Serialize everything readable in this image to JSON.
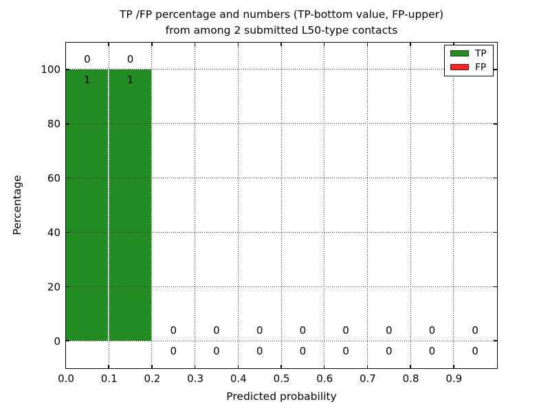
{
  "chart_data": {
    "type": "bar",
    "title": "TP /FP percentage and numbers (TP-bottom value, FP-upper) from among 2 submitted L50-type contacts",
    "title_line1": "TP /FP percentage and numbers (TP-bottom value, FP-upper)",
    "title_line2": "from among 2 submitted L50-type contacts",
    "xlabel": "Predicted probability",
    "ylabel": "Percentage",
    "xlim": [
      0.0,
      1.0
    ],
    "ylim": [
      -10,
      110
    ],
    "xticks": [
      "0.0",
      "0.1",
      "0.2",
      "0.3",
      "0.4",
      "0.5",
      "0.6",
      "0.7",
      "0.8",
      "0.9"
    ],
    "yticks": [
      "0",
      "20",
      "40",
      "60",
      "80",
      "100"
    ],
    "grid": {
      "visible": true,
      "linestyle": "dotted",
      "color": "#333333",
      "axisbelow": false
    },
    "colors": {
      "tp": "#228b22",
      "fp": "#f52525",
      "background": "#ffffff",
      "text": "#000000"
    },
    "legend": {
      "position": "upper right",
      "items": [
        {
          "label": "TP",
          "color": "#228b22"
        },
        {
          "label": "FP",
          "color": "#f52525"
        }
      ]
    },
    "bin_width": 0.1,
    "bins": [
      {
        "range": [
          0.0,
          0.1
        ],
        "tp_percent": 100,
        "fp_percent": 0,
        "tp_count": 1,
        "fp_count": 0
      },
      {
        "range": [
          0.1,
          0.2
        ],
        "tp_percent": 100,
        "fp_percent": 0,
        "tp_count": 1,
        "fp_count": 0
      },
      {
        "range": [
          0.2,
          0.3
        ],
        "tp_percent": 0,
        "fp_percent": 0,
        "tp_count": 0,
        "fp_count": 0
      },
      {
        "range": [
          0.3,
          0.4
        ],
        "tp_percent": 0,
        "fp_percent": 0,
        "tp_count": 0,
        "fp_count": 0
      },
      {
        "range": [
          0.4,
          0.5
        ],
        "tp_percent": 0,
        "fp_percent": 0,
        "tp_count": 0,
        "fp_count": 0
      },
      {
        "range": [
          0.5,
          0.6
        ],
        "tp_percent": 0,
        "fp_percent": 0,
        "tp_count": 0,
        "fp_count": 0
      },
      {
        "range": [
          0.6,
          0.7
        ],
        "tp_percent": 0,
        "fp_percent": 0,
        "tp_count": 0,
        "fp_count": 0
      },
      {
        "range": [
          0.7,
          0.8
        ],
        "tp_percent": 0,
        "fp_percent": 0,
        "tp_count": 0,
        "fp_count": 0
      },
      {
        "range": [
          0.8,
          0.9
        ],
        "tp_percent": 0,
        "fp_percent": 0,
        "tp_count": 0,
        "fp_count": 0
      },
      {
        "range": [
          0.9,
          1.0
        ],
        "tp_percent": 0,
        "fp_percent": 0,
        "tp_count": 0,
        "fp_count": 0
      }
    ],
    "series": [
      {
        "name": "TP",
        "percent_values": [
          100,
          100,
          0,
          0,
          0,
          0,
          0,
          0,
          0,
          0
        ],
        "counts": [
          1,
          1,
          0,
          0,
          0,
          0,
          0,
          0,
          0,
          0
        ]
      },
      {
        "name": "FP",
        "percent_values": [
          0,
          0,
          0,
          0,
          0,
          0,
          0,
          0,
          0,
          0
        ],
        "counts": [
          0,
          0,
          0,
          0,
          0,
          0,
          0,
          0,
          0,
          0
        ]
      }
    ]
  }
}
